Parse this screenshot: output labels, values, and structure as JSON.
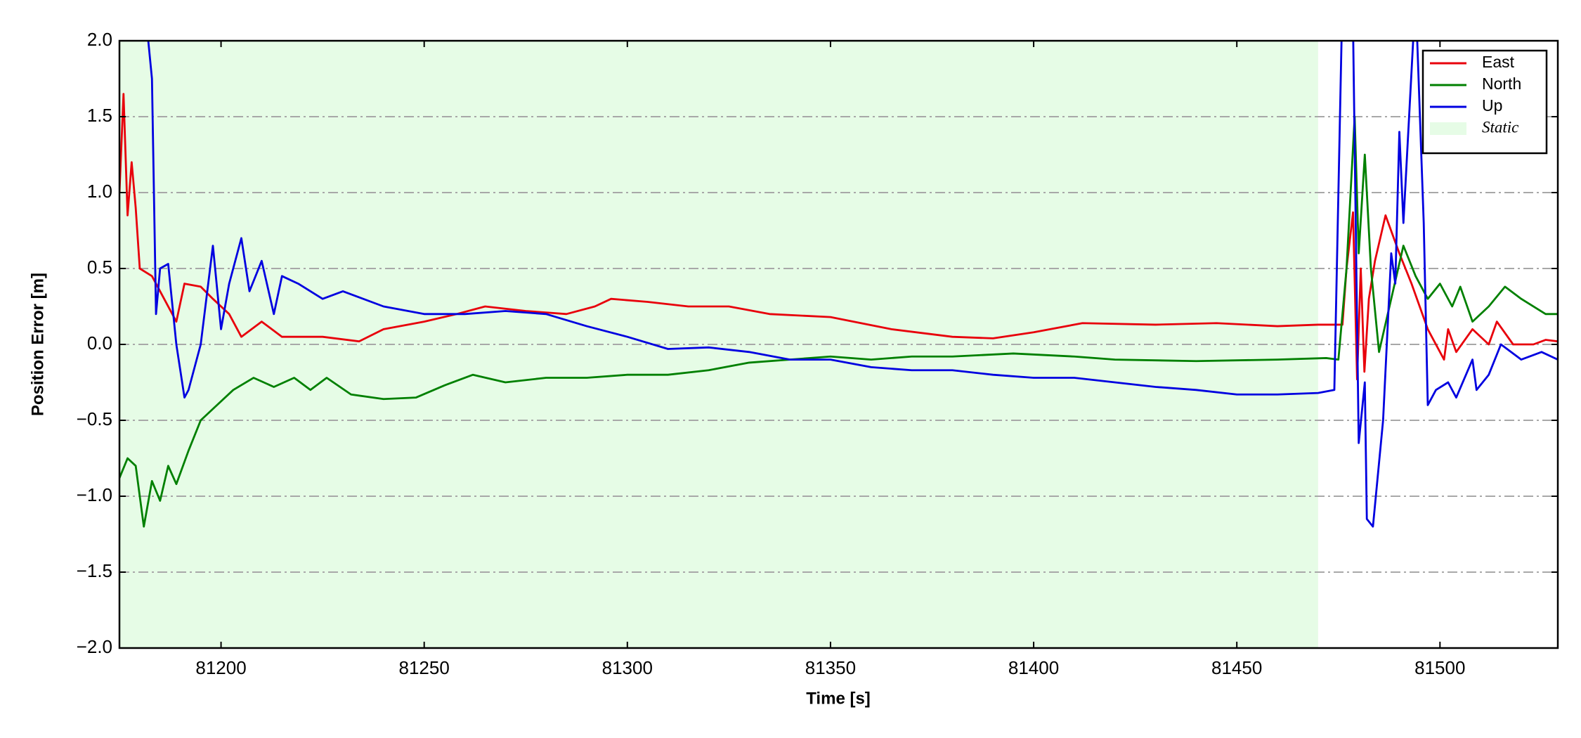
{
  "chart_data": {
    "type": "line",
    "xlabel": "Time [s]",
    "ylabel": "Position Error [m]",
    "xlim": [
      81175,
      81529
    ],
    "ylim": [
      -2.0,
      2.0
    ],
    "xticks": [
      81200,
      81250,
      81300,
      81350,
      81400,
      81450,
      81500
    ],
    "yticks": [
      {
        "value": -2.0,
        "label": "−2.0"
      },
      {
        "value": -1.5,
        "label": "−1.5"
      },
      {
        "value": -1.0,
        "label": "−1.0"
      },
      {
        "value": -0.5,
        "label": "−0.5"
      },
      {
        "value": 0.0,
        "label": "0.0"
      },
      {
        "value": 0.5,
        "label": "0.5"
      },
      {
        "value": 1.0,
        "label": "1.0"
      },
      {
        "value": 1.5,
        "label": "1.5"
      },
      {
        "value": 2.0,
        "label": "2.0"
      }
    ],
    "grid": true,
    "legend": "upper right",
    "spans": [
      {
        "name": "Static",
        "start": 81175,
        "end": 81470,
        "color": "#e6fce6"
      }
    ],
    "series": [
      {
        "name": "East",
        "color": "#e8000b",
        "x": [
          81175,
          81176,
          81177,
          81178,
          81179,
          81180,
          81183,
          81186,
          81189,
          81191,
          81195,
          81198,
          81202,
          81205,
          81210,
          81215,
          81225,
          81234,
          81240,
          81250,
          81258,
          81265,
          81275,
          81285,
          81292,
          81296,
          81305,
          81315,
          81325,
          81335,
          81350,
          81365,
          81380,
          81390,
          81400,
          81412,
          81430,
          81445,
          81460,
          81470,
          81476,
          81477,
          81478.6,
          81479.6,
          81480.5,
          81481.4,
          81482.5,
          81484,
          81486.6,
          81490,
          81493,
          81497,
          81500,
          81501,
          81502,
          81504,
          81508,
          81512,
          81514,
          81518,
          81523,
          81526,
          81529
        ],
        "values": [
          1.0,
          1.65,
          0.85,
          1.2,
          0.9,
          0.5,
          0.45,
          0.3,
          0.15,
          0.4,
          0.38,
          0.3,
          0.2,
          0.05,
          0.15,
          0.05,
          0.05,
          0.02,
          0.1,
          0.15,
          0.2,
          0.25,
          0.22,
          0.2,
          0.25,
          0.3,
          0.28,
          0.25,
          0.25,
          0.2,
          0.18,
          0.1,
          0.05,
          0.04,
          0.08,
          0.14,
          0.13,
          0.14,
          0.12,
          0.13,
          0.13,
          0.5,
          0.87,
          -0.23,
          0.5,
          -0.18,
          0.3,
          0.55,
          0.85,
          0.6,
          0.4,
          0.1,
          -0.05,
          -0.1,
          0.1,
          -0.05,
          0.1,
          0.0,
          0.15,
          0.0,
          0.0,
          0.03,
          0.02
        ]
      },
      {
        "name": "North",
        "color": "#008000",
        "x": [
          81175,
          81177,
          81179,
          81181,
          81183,
          81185,
          81187,
          81189,
          81192,
          81195,
          81199,
          81203,
          81208,
          81213,
          81218,
          81222,
          81226,
          81232,
          81240,
          81248,
          81255,
          81262,
          81270,
          81280,
          81290,
          81300,
          81310,
          81320,
          81330,
          81340,
          81350,
          81360,
          81370,
          81380,
          81395,
          81410,
          81420,
          81440,
          81460,
          81472,
          81475,
          81477,
          81479,
          81480,
          81481.5,
          81483,
          81485,
          81488,
          81491,
          81494,
          81497,
          81500,
          81503,
          81505,
          81508,
          81512,
          81516,
          81520,
          81526,
          81529
        ],
        "values": [
          -0.88,
          -0.75,
          -0.8,
          -1.2,
          -0.9,
          -1.03,
          -0.8,
          -0.92,
          -0.7,
          -0.5,
          -0.4,
          -0.3,
          -0.22,
          -0.28,
          -0.22,
          -0.3,
          -0.22,
          -0.33,
          -0.36,
          -0.35,
          -0.27,
          -0.2,
          -0.25,
          -0.22,
          -0.22,
          -0.2,
          -0.2,
          -0.17,
          -0.12,
          -0.1,
          -0.08,
          -0.1,
          -0.08,
          -0.08,
          -0.06,
          -0.08,
          -0.1,
          -0.11,
          -0.1,
          -0.09,
          -0.1,
          0.5,
          1.5,
          0.6,
          1.25,
          0.5,
          -0.05,
          0.3,
          0.65,
          0.45,
          0.3,
          0.4,
          0.25,
          0.38,
          0.15,
          0.25,
          0.38,
          0.3,
          0.2,
          0.2
        ]
      },
      {
        "name": "Up",
        "color": "#0000e0",
        "x": [
          81181,
          81183,
          81184,
          81185,
          81187,
          81189,
          81191,
          81192,
          81195,
          81198,
          81200,
          81202,
          81205,
          81207,
          81210,
          81213,
          81215,
          81219,
          81225,
          81230,
          81240,
          81250,
          81260,
          81270,
          81280,
          81290,
          81300,
          81310,
          81320,
          81330,
          81340,
          81350,
          81360,
          81370,
          81380,
          81390,
          81400,
          81410,
          81420,
          81430,
          81440,
          81450,
          81460,
          81470,
          81474,
          81475,
          81476,
          81478.5,
          81480,
          81481.5,
          81482,
          81483.5,
          81486,
          81488,
          81489,
          81490,
          81491,
          81493,
          81494,
          81496,
          81497,
          81499,
          81502,
          81504,
          81508,
          81509,
          81512,
          81515,
          81520,
          81525,
          81529
        ],
        "values": [
          2.3,
          1.75,
          0.2,
          0.5,
          0.53,
          0.0,
          -0.35,
          -0.3,
          0.0,
          0.65,
          0.1,
          0.4,
          0.7,
          0.35,
          0.55,
          0.2,
          0.45,
          0.4,
          0.3,
          0.35,
          0.25,
          0.2,
          0.2,
          0.22,
          0.2,
          0.12,
          0.05,
          -0.03,
          -0.02,
          -0.05,
          -0.1,
          -0.1,
          -0.15,
          -0.17,
          -0.17,
          -0.2,
          -0.22,
          -0.22,
          -0.25,
          -0.28,
          -0.3,
          -0.33,
          -0.33,
          -0.32,
          -0.3,
          1.0,
          2.3,
          2.3,
          -0.65,
          -0.25,
          -1.15,
          -1.2,
          -0.5,
          0.6,
          0.4,
          1.4,
          0.8,
          1.8,
          2.3,
          0.8,
          -0.4,
          -0.3,
          -0.25,
          -0.35,
          -0.1,
          -0.3,
          -0.2,
          0.0,
          -0.1,
          -0.05,
          -0.1
        ]
      }
    ]
  }
}
